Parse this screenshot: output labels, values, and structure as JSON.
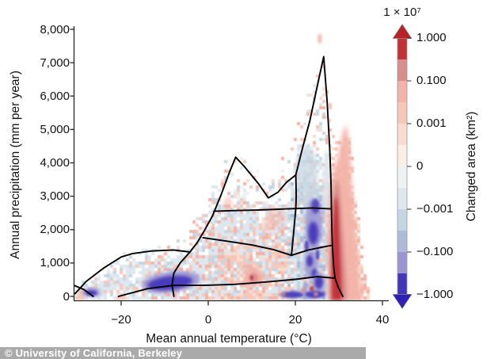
{
  "watermark": {
    "text": "© University of California, Berkeley"
  },
  "chart_data": {
    "type": "heatmap",
    "title": "",
    "xlabel": "Mean annual temperature (°C)",
    "ylabel": "Annual precipitation (mm per year)",
    "xlim": [
      -31,
      41
    ],
    "ylim": [
      0,
      8000
    ],
    "grid": false,
    "x_ticks": [
      {
        "value": -20,
        "label": "−20"
      },
      {
        "value": 0,
        "label": "0"
      },
      {
        "value": 20,
        "label": "20"
      },
      {
        "value": 40,
        "label": "40"
      }
    ],
    "y_ticks": [
      {
        "value": 0,
        "label": "0"
      },
      {
        "value": 1000,
        "label": "1,000"
      },
      {
        "value": 2000,
        "label": "2,000"
      },
      {
        "value": 3000,
        "label": "3,000"
      },
      {
        "value": 4000,
        "label": "4,000"
      },
      {
        "value": 5000,
        "label": "5,000"
      },
      {
        "value": 6000,
        "label": "6,000"
      },
      {
        "value": 7000,
        "label": "7,000"
      },
      {
        "value": 8000,
        "label": "8,000"
      }
    ],
    "colorbar": {
      "title": "1 × 10⁷",
      "label": "Changed area (km²)",
      "tick_labels": [
        "1.000",
        "0.100",
        "0.001",
        "0",
        "−0.001",
        "−0.100",
        "−1.000"
      ],
      "segment_colors": [
        "#c13137",
        "#d88e8d",
        "#f2b3a8",
        "#f6c8ba",
        "#f9dccf",
        "#fbeee5",
        "#eff2f3",
        "#dde7ed",
        "#c6d5e2",
        "#aebbd8",
        "#9b95d1",
        "#4336b9"
      ],
      "arrow_top_color": "#b5242b",
      "arrow_bottom_color": "#2f21b5"
    },
    "scatter_envelope": [
      [
        -31,
        250
      ],
      [
        -27,
        600
      ],
      [
        -23,
        950
      ],
      [
        -20,
        1250
      ],
      [
        -16,
        1450
      ],
      [
        -12,
        1500
      ],
      [
        -8,
        1560
      ],
      [
        -5,
        1900
      ],
      [
        -2,
        2550
      ],
      [
        0,
        3050
      ],
      [
        2,
        3550
      ],
      [
        4,
        4150
      ],
      [
        6,
        4450
      ],
      [
        8,
        4350
      ],
      [
        10,
        3950
      ],
      [
        12,
        3750
      ],
      [
        14,
        3550
      ],
      [
        16,
        3850
      ],
      [
        18,
        4450
      ],
      [
        20,
        5150
      ],
      [
        22,
        5850
      ],
      [
        24,
        6350
      ],
      [
        25.5,
        6950
      ],
      [
        26.5,
        7350
      ],
      [
        27.5,
        6250
      ],
      [
        28.5,
        5350
      ],
      [
        29.5,
        4850
      ],
      [
        30.5,
        4750
      ],
      [
        31.5,
        5250
      ],
      [
        32.5,
        5150
      ],
      [
        33.5,
        3650
      ],
      [
        34.5,
        2450
      ],
      [
        35.5,
        1350
      ],
      [
        36.5,
        450
      ],
      [
        37.2,
        150
      ]
    ],
    "biome_boundaries": [
      {
        "name": "whittaker-envelope",
        "points": [
          [
            -30.6,
            80
          ],
          [
            -28,
            450
          ],
          [
            -24,
            850
          ],
          [
            -20,
            1180
          ],
          [
            -17.5,
            1280
          ],
          [
            -13,
            1360
          ],
          [
            -8,
            1390
          ],
          [
            -4.2,
            1330
          ],
          [
            -2.5,
            1620
          ],
          [
            -0.8,
            1990
          ],
          [
            1,
            2420
          ],
          [
            3,
            3060
          ],
          [
            5,
            3760
          ],
          [
            6.3,
            4170
          ],
          [
            8.3,
            3890
          ],
          [
            11.5,
            3380
          ],
          [
            13.8,
            2950
          ],
          [
            16,
            3120
          ],
          [
            18,
            3420
          ],
          [
            20.1,
            3640
          ],
          [
            21.6,
            4420
          ],
          [
            23.3,
            5240
          ],
          [
            25,
            6280
          ],
          [
            26.5,
            7180
          ],
          [
            27.3,
            5850
          ],
          [
            27.9,
            4450
          ],
          [
            28.2,
            3340
          ],
          [
            28.3,
            2620
          ],
          [
            28.4,
            1950
          ],
          [
            28.5,
            1520
          ],
          [
            28.8,
            900
          ],
          [
            29.1,
            545
          ],
          [
            29.8,
            290
          ],
          [
            30.9,
            0
          ]
        ]
      },
      {
        "name": "tundra-tip",
        "points": [
          [
            -31,
            340
          ],
          [
            -28.6,
            210
          ],
          [
            -26.4,
            0
          ]
        ]
      },
      {
        "name": "steep-left-boundary",
        "points": [
          [
            -7.9,
            0
          ],
          [
            -8.3,
            350
          ],
          [
            -7.9,
            700
          ],
          [
            -6.4,
            1010
          ],
          [
            -4.2,
            1330
          ]
        ]
      },
      {
        "name": "lower-dry-boundary",
        "points": [
          [
            -20.6,
            0
          ],
          [
            -14,
            230
          ],
          [
            -8,
            330
          ],
          [
            -1,
            330
          ],
          [
            6,
            360
          ],
          [
            13,
            430
          ],
          [
            20,
            510
          ],
          [
            25,
            590
          ],
          [
            29.1,
            545
          ]
        ]
      },
      {
        "name": "upper-forest-boundary",
        "points": [
          [
            1.3,
            2550
          ],
          [
            6,
            2570
          ],
          [
            12,
            2590
          ],
          [
            18,
            2620
          ],
          [
            24,
            2650
          ],
          [
            28.3,
            2620
          ]
        ]
      },
      {
        "name": "mid-forest-boundary",
        "points": [
          [
            -1.2,
            1760
          ],
          [
            4,
            1660
          ],
          [
            10,
            1540
          ],
          [
            15,
            1400
          ],
          [
            19.1,
            1230
          ],
          [
            23,
            1390
          ],
          [
            26,
            1470
          ],
          [
            28.45,
            1530
          ]
        ]
      },
      {
        "name": "tropical-divide",
        "points": [
          [
            20.1,
            3640
          ],
          [
            20.2,
            3000
          ],
          [
            20.1,
            2640
          ],
          [
            19.6,
            1900
          ],
          [
            19.1,
            1230
          ]
        ]
      }
    ],
    "noise_zones": [
      {
        "t": [
          -32,
          -15
        ],
        "p": [
          0,
          99999
        ],
        "density": 0.8,
        "colors": [
          "#dde7ed",
          "#dde7ed",
          "#dde7ed",
          "#c6d5e2",
          "#f6c8ba",
          "#eff2f3"
        ]
      },
      {
        "t": [
          -15,
          2
        ],
        "p": [
          0,
          99999
        ],
        "density": 0.92,
        "colors": [
          "#dde7ed",
          "#dde7ed",
          "#c6d5e2",
          "#f6c8ba",
          "#f2b3a8",
          "#dde7ed"
        ]
      },
      {
        "t": [
          2,
          18.5
        ],
        "p": [
          0,
          1600
        ],
        "density": 0.95,
        "colors": [
          "#f6c8ba",
          "#f6c8ba",
          "#f2b3a8",
          "#dde7ed",
          "#c6d5e2",
          "#f9dccf"
        ]
      },
      {
        "t": [
          2,
          18.5
        ],
        "p": [
          1600,
          2750
        ],
        "density": 0.95,
        "colors": [
          "#dde7ed",
          "#c6d5e2",
          "#f6c8ba",
          "#dde7ed",
          "#f2b3a8",
          "#dde7ed"
        ]
      },
      {
        "t": [
          2,
          18.5
        ],
        "p": [
          2750,
          99999
        ],
        "density": 0.5,
        "colors": [
          "#dde7ed",
          "#f6c8ba",
          "#f9dccf",
          "#eff2f3",
          "#c6d5e2",
          "#f2b3a8"
        ]
      },
      {
        "t": [
          18.5,
          27.5
        ],
        "p": [
          0,
          3400
        ],
        "density": 0.96,
        "colors": [
          "#dde7ed",
          "#dde7ed",
          "#c6d5e2",
          "#c6d5e2",
          "#f6c8ba",
          "#aebbd8"
        ]
      },
      {
        "t": [
          18.5,
          27.5
        ],
        "p": [
          3400,
          99999
        ],
        "density": 0.45,
        "colors": [
          "#dde7ed",
          "#c6d5e2",
          "#f6c8ba",
          "#f9dccf",
          "#dde7ed",
          "#f2b3a8"
        ]
      },
      {
        "t": [
          27.5,
          38
        ],
        "p": [
          0,
          99999
        ],
        "density": 0.9,
        "colors": [
          "#f2b3a8",
          "#f6c8ba",
          "#f6c8ba",
          "#f9dccf",
          "#f2b3a8",
          "#f9dccf"
        ]
      }
    ],
    "features": [
      {
        "shape": "ellipse",
        "name": "blue-column-soft",
        "t": 22.6,
        "p": 3600,
        "rt": 2.6,
        "rp": 950,
        "color": "#c6d5e2",
        "blur": 3,
        "opacity": 0.75
      },
      {
        "shape": "ellipse",
        "name": "blue-strip-under-spike",
        "t": 27.2,
        "p": 3400,
        "rt": 0.95,
        "rp": 1000,
        "color": "#dde7ed",
        "blur": 2,
        "opacity": 0.9
      },
      {
        "shape": "polygon",
        "name": "red-band-halo",
        "color": "#f2b3a8",
        "blur": 3,
        "opacity": 0.95,
        "points": [
          [
            27.6,
            -100
          ],
          [
            27.6,
            2500
          ],
          [
            28.1,
            3300
          ],
          [
            28.8,
            3800
          ],
          [
            29.8,
            4200
          ],
          [
            30.8,
            4900
          ],
          [
            31.7,
            5150
          ],
          [
            32.5,
            4500
          ],
          [
            33,
            3400
          ],
          [
            33.7,
            2100
          ],
          [
            34.4,
            800
          ],
          [
            35.1,
            -100
          ]
        ]
      },
      {
        "shape": "polygon",
        "name": "red-band-mid",
        "color": "#d88e8d",
        "blur": 2.5,
        "opacity": 0.95,
        "points": [
          [
            28,
            -100
          ],
          [
            28,
            1700
          ],
          [
            28.35,
            2500
          ],
          [
            28.9,
            3200
          ],
          [
            29.5,
            3550
          ],
          [
            30.2,
            3250
          ],
          [
            30.7,
            2350
          ],
          [
            31.3,
            1300
          ],
          [
            31.7,
            500
          ],
          [
            31.9,
            -100
          ]
        ]
      },
      {
        "shape": "polygon",
        "name": "red-band-core",
        "color": "#c13137",
        "blur": 2,
        "opacity": 0.97,
        "points": [
          [
            28.35,
            -100
          ],
          [
            28.35,
            1100
          ],
          [
            28.6,
            2100
          ],
          [
            29,
            2850
          ],
          [
            29.45,
            3050
          ],
          [
            29.85,
            2600
          ],
          [
            30.15,
            1700
          ],
          [
            30.5,
            700
          ],
          [
            30.7,
            -100
          ]
        ]
      },
      {
        "shape": "ellipse",
        "name": "salmon-blob",
        "t": 10.2,
        "p": 580,
        "rt": 2.3,
        "rp": 300,
        "color": "#f2b3a8",
        "blur": 2,
        "opacity": 0.9
      },
      {
        "shape": "ellipse",
        "name": "salmon-blob-core",
        "t": 10.4,
        "p": 560,
        "rt": 1.1,
        "rp": 150,
        "color": "#d88e8d",
        "blur": 1.5,
        "opacity": 0.9
      },
      {
        "shape": "ellipse",
        "name": "salmon-blob-dot",
        "t": 10,
        "p": 560,
        "rt": 0.4,
        "rp": 70,
        "color": "#c13137",
        "blur": 1,
        "opacity": 0.9
      },
      {
        "shape": "ellipse",
        "name": "salmon-mid-1",
        "t": 15.5,
        "p": 2400,
        "rt": 2.1,
        "rp": 280,
        "color": "#f2b3a8",
        "blur": 2.5,
        "opacity": 0.55
      },
      {
        "shape": "ellipse",
        "name": "salmon-mid-2",
        "t": 13.5,
        "p": 2150,
        "rt": 1.3,
        "rp": 200,
        "color": "#f6c8ba",
        "blur": 2,
        "opacity": 0.7
      },
      {
        "shape": "ellipse",
        "name": "salmon-up-left",
        "t": 4.5,
        "p": 2750,
        "rt": 1,
        "rp": 250,
        "color": "#f2b3a8",
        "blur": 2,
        "opacity": 0.55
      },
      {
        "shape": "ellipse",
        "name": "purple-left-rim",
        "t": -8.6,
        "p": 430,
        "rt": 6.8,
        "rp": 310,
        "rot": -7,
        "color": "#9b95d1",
        "blur": 2.5,
        "opacity": 0.9
      },
      {
        "shape": "ellipse",
        "name": "darkblue-left",
        "t": -8.8,
        "p": 400,
        "rt": 5.2,
        "rp": 205,
        "rot": -7,
        "color": "#4336b9",
        "blur": 2,
        "opacity": 0.95
      },
      {
        "shape": "ellipse",
        "name": "purple-corner-rim",
        "t": -26.8,
        "p": 120,
        "rt": 2.2,
        "rp": 140,
        "color": "#9b95d1",
        "blur": 2,
        "opacity": 0.85
      },
      {
        "shape": "ellipse",
        "name": "darkblue-corner",
        "t": -26.9,
        "p": 105,
        "rt": 1.4,
        "rp": 80,
        "color": "#4336b9",
        "blur": 1.5,
        "opacity": 0.95
      },
      {
        "shape": "ellipse",
        "name": "purple-col-rim-1",
        "t": 24.3,
        "p": 2150,
        "rt": 2,
        "rp": 800,
        "color": "#9b95d1",
        "blur": 2.5,
        "opacity": 0.85
      },
      {
        "shape": "ellipse",
        "name": "darkblue-col-1",
        "t": 24.1,
        "p": 1900,
        "rt": 1.15,
        "rp": 340,
        "color": "#4336b9",
        "blur": 2,
        "opacity": 0.95
      },
      {
        "shape": "ellipse",
        "name": "darkblue-col-1b",
        "t": 24.6,
        "p": 2700,
        "rt": 0.9,
        "rp": 220,
        "color": "#4336b9",
        "blur": 1.5,
        "opacity": 0.8
      },
      {
        "shape": "ellipse",
        "name": "purple-col-rim-2",
        "t": 23.6,
        "p": 950,
        "rt": 1.6,
        "rp": 430,
        "color": "#9b95d1",
        "blur": 2,
        "opacity": 0.85
      },
      {
        "shape": "ellipse",
        "name": "darkblue-col-2",
        "t": 23.3,
        "p": 1060,
        "rt": 0.75,
        "rp": 170,
        "color": "#4336b9",
        "blur": 1.5,
        "opacity": 0.9
      },
      {
        "shape": "ellipse",
        "name": "darkblue-col-2b",
        "t": 24.4,
        "p": 680,
        "rt": 0.7,
        "rp": 150,
        "color": "#4336b9",
        "blur": 1.5,
        "opacity": 0.9
      },
      {
        "shape": "ellipse",
        "name": "purple-col-rim-3",
        "t": 25.4,
        "p": 420,
        "rt": 1.5,
        "rp": 300,
        "color": "#9b95d1",
        "blur": 2,
        "opacity": 0.8
      },
      {
        "shape": "ellipse",
        "name": "darkblue-col-3",
        "t": 25.4,
        "p": 420,
        "rt": 0.95,
        "rp": 190,
        "color": "#4336b9",
        "blur": 1.5,
        "opacity": 0.9
      },
      {
        "shape": "ellipse",
        "name": "purple-bottom-rim",
        "t": 21.9,
        "p": 60,
        "rt": 3.8,
        "rp": 120,
        "color": "#9b95d1",
        "blur": 2,
        "opacity": 0.7
      },
      {
        "shape": "ellipse",
        "name": "darkblue-bottom-1",
        "t": 19.2,
        "p": 50,
        "rt": 2.6,
        "rp": 95,
        "color": "#4336b9",
        "blur": 1.5,
        "opacity": 0.92
      },
      {
        "shape": "ellipse",
        "name": "darkblue-bottom-2",
        "t": 24.6,
        "p": 60,
        "rt": 2.4,
        "rp": 110,
        "color": "#4336b9",
        "blur": 1.5,
        "opacity": 0.92
      },
      {
        "shape": "ellipse",
        "name": "purple-dot-1",
        "t": 22.6,
        "p": 1500,
        "rt": 0.5,
        "rp": 180,
        "color": "#4336b9",
        "blur": 1,
        "opacity": 0.8
      },
      {
        "shape": "ellipse",
        "name": "purple-dot-2",
        "t": 25.1,
        "p": 1250,
        "rt": 0.45,
        "rp": 160,
        "color": "#4336b9",
        "blur": 1,
        "opacity": 0.8
      },
      {
        "shape": "ellipse",
        "name": "purple-dot-3",
        "t": 22.3,
        "p": 300,
        "rt": 0.5,
        "rp": 140,
        "color": "#9b95d1",
        "blur": 1,
        "opacity": 0.8
      },
      {
        "shape": "ellipse",
        "name": "red-dot-1",
        "t": 21.8,
        "p": 180,
        "rt": 0.5,
        "rp": 90,
        "color": "#d88e8d",
        "blur": 1,
        "opacity": 0.85
      },
      {
        "shape": "ellipse",
        "name": "red-dot-2",
        "t": 23.8,
        "p": 230,
        "rt": 0.5,
        "rp": 80,
        "color": "#c13137",
        "blur": 1,
        "opacity": 0.8
      },
      {
        "shape": "ellipse",
        "name": "red-dot-3",
        "t": 24.7,
        "p": 70,
        "rt": 0.55,
        "rp": 60,
        "color": "#d88e8d",
        "blur": 1,
        "opacity": 0.85
      },
      {
        "shape": "ellipse",
        "name": "red-dot-4",
        "t": 17.3,
        "p": 60,
        "rt": 0.5,
        "rp": 55,
        "color": "#d88e8d",
        "blur": 1,
        "opacity": 0.7
      },
      {
        "shape": "ellipse",
        "name": "pink-speck-top",
        "t": 25.6,
        "p": 7720,
        "rt": 0.5,
        "rp": 160,
        "color": "#f2b3a8",
        "blur": 1.5,
        "opacity": 0.9
      }
    ]
  }
}
